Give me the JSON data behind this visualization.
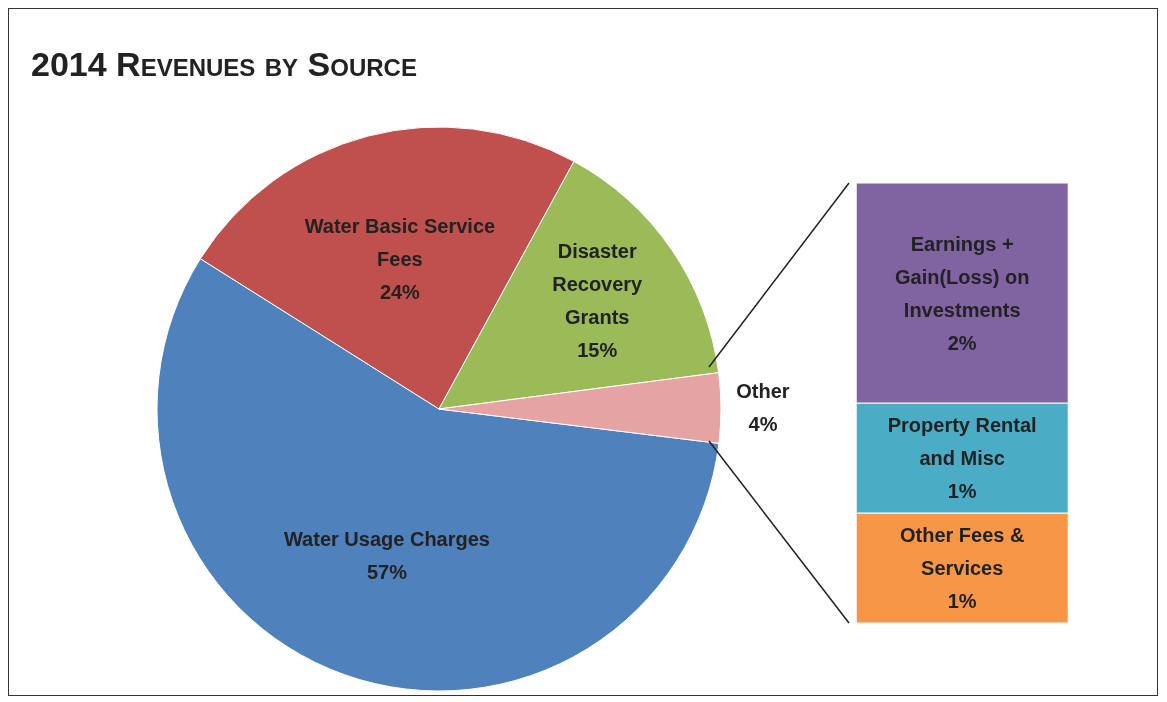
{
  "chart_data": [
    {
      "type": "pie",
      "title": "2014 Revenues by Source",
      "categories": [
        "Water Usage Charges",
        "Water Basic Service Fees",
        "Disaster Recovery Grants",
        "Other"
      ],
      "values": [
        57,
        24,
        15,
        4
      ],
      "colors": [
        "#4f81bd",
        "#c0504d",
        "#9bbb59",
        "#e6a3a3"
      ],
      "value_labels": [
        "57%",
        "24%",
        "15%",
        "4%"
      ]
    },
    {
      "type": "bar",
      "stacked": true,
      "categories": [
        null
      ],
      "series": [
        {
          "name": "Other Fees & Services",
          "color": "#f79646",
          "values": [
            1
          ],
          "value_labels": [
            "1%"
          ]
        },
        {
          "name": "Property Rental and Misc",
          "color": "#4bacc6",
          "values": [
            1
          ],
          "value_labels": [
            "1%"
          ]
        },
        {
          "name": "Earnings + Gain(Loss) on Investments",
          "color": "#8064a2",
          "values": [
            2
          ],
          "value_labels": [
            "2%"
          ]
        }
      ]
    }
  ]
}
